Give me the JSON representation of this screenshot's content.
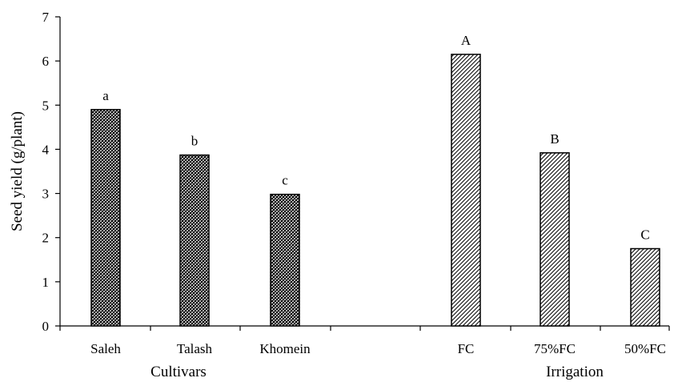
{
  "chart_data": {
    "type": "bar",
    "ylabel": "Seed yield (g/plant)",
    "ylim": [
      0,
      7
    ],
    "yticks": [
      0,
      1,
      2,
      3,
      4,
      5,
      6,
      7
    ],
    "grid": false,
    "groups": [
      {
        "name": "Cultivars",
        "categories": [
          "Saleh",
          "Talash",
          "Khomein"
        ],
        "values": [
          4.9,
          3.87,
          2.98
        ],
        "letters": [
          "a",
          "b",
          "c"
        ],
        "fill_pattern": "cross-hatch (dense diagonal, dark)"
      },
      {
        "name": "Irrigation",
        "categories": [
          "FC",
          "75%FC",
          "50%FC"
        ],
        "values": [
          6.15,
          3.92,
          1.75
        ],
        "letters": [
          "A",
          "B",
          "C"
        ],
        "fill_pattern": "diagonal hatch (light)"
      }
    ]
  }
}
